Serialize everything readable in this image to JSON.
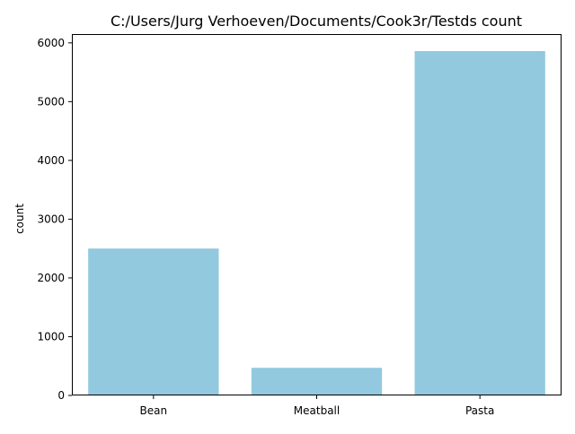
{
  "chart_data": {
    "type": "bar",
    "title": "C:/Users/Jurg Verhoeven/Documents/Cook3r/Testds count",
    "xlabel": "",
    "ylabel": "count",
    "categories": [
      "Bean",
      "Meatball",
      "Pasta"
    ],
    "values": [
      2500,
      470,
      5860
    ],
    "ylim": [
      0,
      6150
    ],
    "yticks": [
      0,
      1000,
      2000,
      3000,
      4000,
      5000,
      6000
    ],
    "bar_color": "#92c9df",
    "grid": false,
    "legend": "none"
  }
}
